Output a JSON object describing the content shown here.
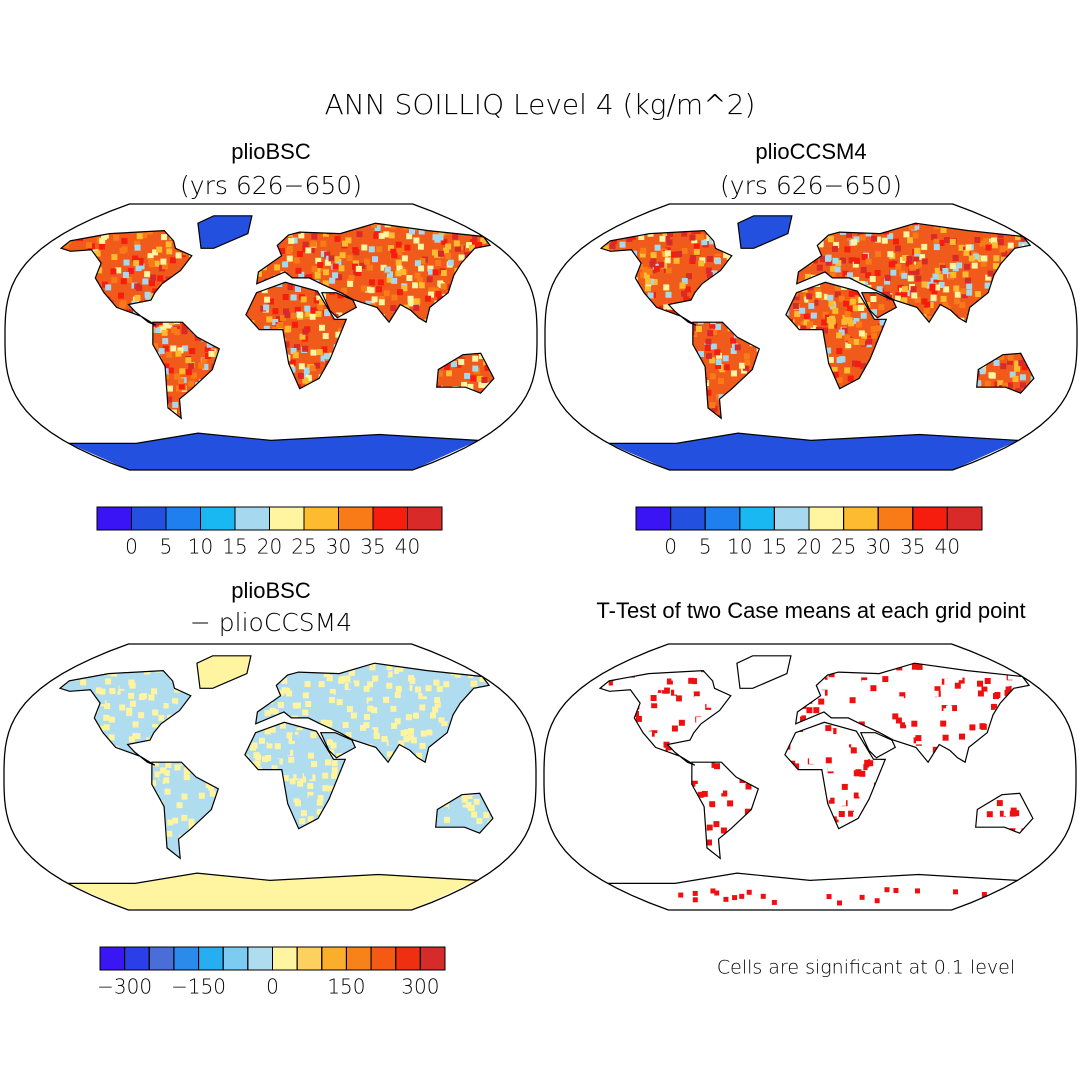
{
  "title": "ANN SOILLIQ Level 4 (kg/m^2)",
  "panels": [
    {
      "title": "plioBSC",
      "subtitle": "(yrs 626−650)"
    },
    {
      "title": "plioCCSM4",
      "subtitle": "(yrs 626−650)"
    },
    {
      "title": "plioBSC",
      "subtitle": "− plioCCSM4"
    },
    {
      "title": "T-Test of two Case means at each grid point"
    }
  ],
  "colorbars": [
    {
      "colors": [
        "#3b14f5",
        "#2450e0",
        "#1f7fef",
        "#19b8f2",
        "#a6d8f0",
        "#fff5a0",
        "#fdbb2f",
        "#f87b17",
        "#f61c0e",
        "#d92a2a"
      ],
      "levels": [
        0,
        5,
        10,
        15,
        20,
        25,
        30,
        35,
        40
      ],
      "ticks": [
        0,
        5,
        10,
        15,
        20,
        25,
        30,
        35,
        40
      ]
    },
    {
      "colors": [
        "#3b14f5",
        "#2450e0",
        "#1f7fef",
        "#19b8f2",
        "#a6d8f0",
        "#fff5a0",
        "#fdbb2f",
        "#f87b17",
        "#f61c0e",
        "#d92a2a"
      ],
      "levels": [
        0,
        5,
        10,
        15,
        20,
        25,
        30,
        35,
        40
      ],
      "ticks": [
        0,
        5,
        10,
        15,
        20,
        25,
        30,
        35,
        40
      ]
    },
    {
      "colors": [
        "#3a17f2",
        "#2a3fe8",
        "#4a6ed8",
        "#2a8bea",
        "#27aef0",
        "#7ccbf0",
        "#b0dcf0",
        "#fff4a0",
        "#fdd060",
        "#fbae2c",
        "#f8821a",
        "#f55a14",
        "#ee2f10",
        "#d52b2b"
      ],
      "levels": [
        -300,
        -250,
        -200,
        -150,
        -100,
        -50,
        0,
        50,
        100,
        150,
        200,
        250,
        300
      ],
      "ticks": [
        {
          "value": -300,
          "label": "−300"
        },
        {
          "value": -150,
          "label": "−150"
        },
        0,
        150,
        300
      ]
    }
  ],
  "footnote": "Cells are significant at 0.1 level"
}
